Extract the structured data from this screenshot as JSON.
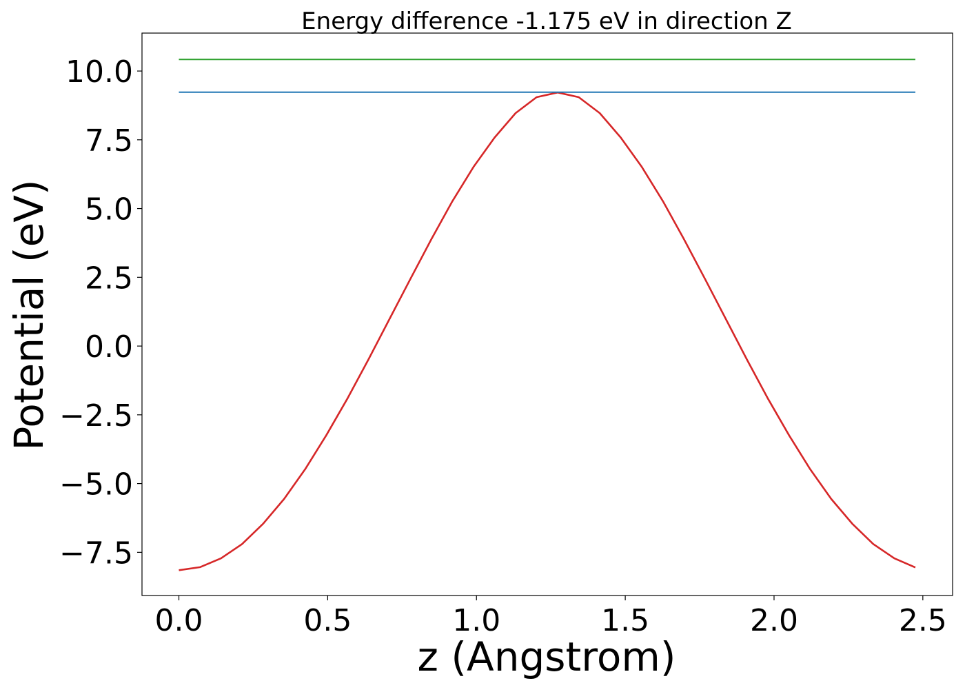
{
  "chart_data": {
    "type": "line",
    "title": "Energy difference -1.175 eV in direction Z",
    "xlabel": "z (Angstrom)",
    "ylabel": "Potential (eV)",
    "xlim": [
      -0.124,
      2.6
    ],
    "ylim": [
      -9.07,
      11.38
    ],
    "xticks": [
      0.0,
      0.5,
      1.0,
      1.5,
      2.0,
      2.5
    ],
    "xtick_labels": [
      "0.0",
      "0.5",
      "1.0",
      "1.5",
      "2.0",
      "2.5"
    ],
    "yticks": [
      -7.5,
      -5.0,
      -2.5,
      0.0,
      2.5,
      5.0,
      7.5,
      10.0
    ],
    "ytick_labels": [
      "−7.5",
      "−5.0",
      "−2.5",
      "0.0",
      "2.5",
      "5.0",
      "7.5",
      "10.0"
    ],
    "grid": false,
    "legend": "none",
    "series": [
      {
        "color": "#d62728",
        "x": [
          0.0,
          0.0707,
          0.1414,
          0.2121,
          0.2829,
          0.3536,
          0.4243,
          0.495,
          0.5657,
          0.6364,
          0.7071,
          0.7779,
          0.8486,
          0.9193,
          0.99,
          1.0607,
          1.1314,
          1.2021,
          1.2729,
          1.3436,
          1.4143,
          1.485,
          1.5557,
          1.6264,
          1.6971,
          1.7679,
          1.8386,
          1.9093,
          1.98,
          2.0507,
          2.1214,
          2.1921,
          2.2629,
          2.3336,
          2.4043,
          2.475
        ],
        "y": [
          -8.15,
          -8.04,
          -7.72,
          -7.2,
          -6.46,
          -5.56,
          -4.48,
          -3.25,
          -1.92,
          -0.5,
          0.97,
          2.44,
          3.89,
          5.27,
          6.51,
          7.58,
          8.47,
          9.05,
          9.22,
          9.05,
          8.47,
          7.58,
          6.51,
          5.27,
          3.89,
          2.44,
          0.97,
          -0.5,
          -1.92,
          -3.25,
          -4.48,
          -5.56,
          -6.46,
          -7.2,
          -7.72,
          -8.05
        ]
      },
      {
        "color": "#1f77b4",
        "x": [
          0.0,
          2.475
        ],
        "y": [
          9.23,
          9.23
        ]
      },
      {
        "color": "#2ca02c",
        "x": [
          0.0,
          2.475
        ],
        "y": [
          10.42,
          10.42
        ]
      }
    ]
  }
}
